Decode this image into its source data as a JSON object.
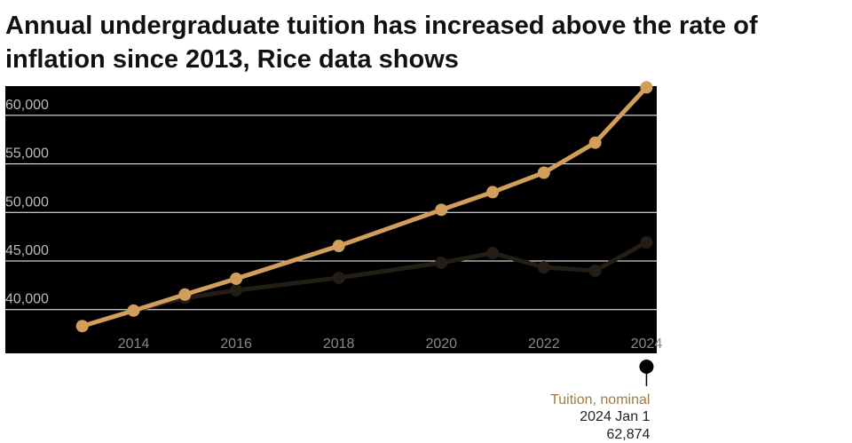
{
  "chart_data": {
    "type": "line",
    "title": "Annual undergraduate tuition has increased above the rate of inflation since 2013, Rice data shows",
    "x": [
      2013,
      2014,
      2015,
      2016,
      2018,
      2020,
      2021,
      2022,
      2023,
      2024
    ],
    "series": [
      {
        "color": "#231d15",
        "values": [
          38300,
          39900,
          41200,
          41990,
          43270,
          44820,
          45820,
          44360,
          44000,
          46910
        ]
      },
      {
        "name": "Tuition, nominal",
        "color": "#d19e5c",
        "values": [
          38300,
          39900,
          41550,
          43180,
          46550,
          50270,
          52090,
          54090,
          57180,
          62874
        ]
      }
    ],
    "xlim": [
      2011.5,
      2024.2
    ],
    "xticks": [
      2014,
      2016,
      2018,
      2020,
      2022,
      2024
    ],
    "ylim": [
      35500,
      63000
    ],
    "yticks": [
      {
        "value": 40000,
        "label": "40,000"
      },
      {
        "value": 45000,
        "label": "45,000"
      },
      {
        "value": 50000,
        "label": "50,000"
      },
      {
        "value": 55000,
        "label": "55,000"
      },
      {
        "value": 60000,
        "label": "60,000"
      }
    ],
    "grid": true,
    "tooltip": {
      "date": "2024 Jan 1",
      "value_label": "62,874"
    }
  }
}
